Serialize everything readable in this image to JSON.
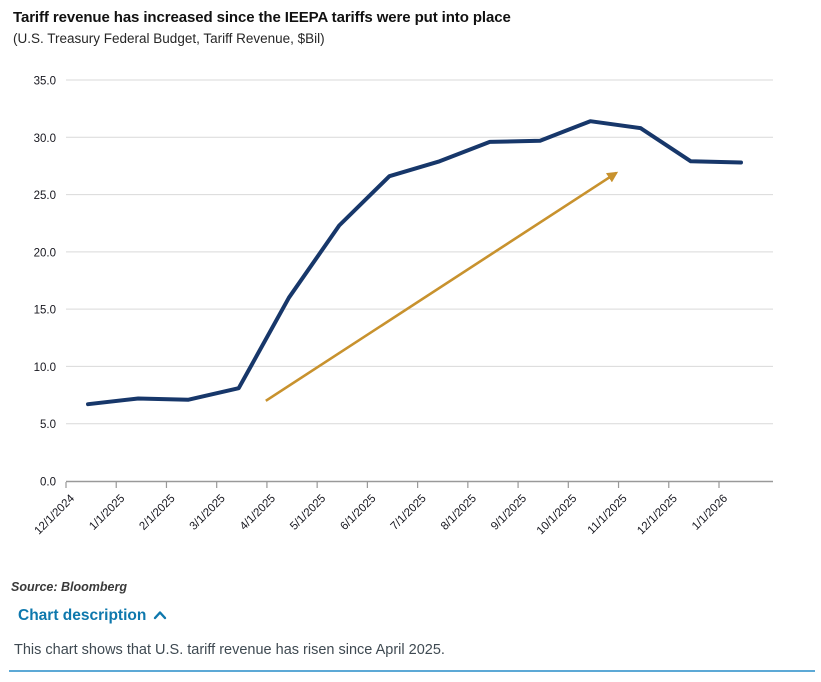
{
  "header": {
    "title": "Tariff revenue has increased since the IEEPA tariffs were put into place",
    "subtitle": "(U.S. Treasury Federal Budget, Tariff Revenue, $Bil)"
  },
  "chart_data": {
    "type": "line",
    "categories": [
      "12/1/2024",
      "1/1/2025",
      "2/1/2025",
      "3/1/2025",
      "4/1/2025",
      "5/1/2025",
      "6/1/2025",
      "7/1/2025",
      "8/1/2025",
      "9/1/2025",
      "10/1/2025",
      "11/1/2025",
      "12/1/2025",
      "1/1/2026"
    ],
    "series": [
      {
        "name": "Tariff Revenue ($Bil)",
        "values": [
          6.7,
          7.2,
          7.1,
          8.1,
          16.0,
          22.3,
          26.6,
          27.9,
          29.6,
          29.7,
          31.4,
          30.8,
          27.9,
          27.8
        ]
      }
    ],
    "title": "Tariff revenue has increased since the IEEPA tariffs were put into place",
    "subtitle": "(U.S. Treasury Federal Budget, Tariff Revenue, $Bil)",
    "xlabel": "",
    "ylabel": "",
    "ylim": [
      0,
      35
    ],
    "ytick_step": 5,
    "ytick_format_decimals": 1,
    "grid": true,
    "legend": "none",
    "x_labels_rotation_deg": -45,
    "annotation_arrow": {
      "note": "gold trend arrow emphasizing rise since April 2025",
      "from_month_index": 3.54,
      "from_value": 7.0,
      "to_month_index": 10.52,
      "to_value": 26.9
    }
  },
  "colors": {
    "line": "#17376a",
    "arrow": "#c8922e",
    "grid": "#d9d9d9",
    "axis": "#999999",
    "tick_label": "#17171f",
    "accent_blue": "#0e78ad",
    "rule_blue": "#5ca9d6"
  },
  "footer": {
    "source": "Source: Bloomberg",
    "chart_description_label": "Chart description",
    "chevron_icon": "chevron-up",
    "description": "This chart shows that U.S. tariff revenue has risen since April 2025."
  }
}
